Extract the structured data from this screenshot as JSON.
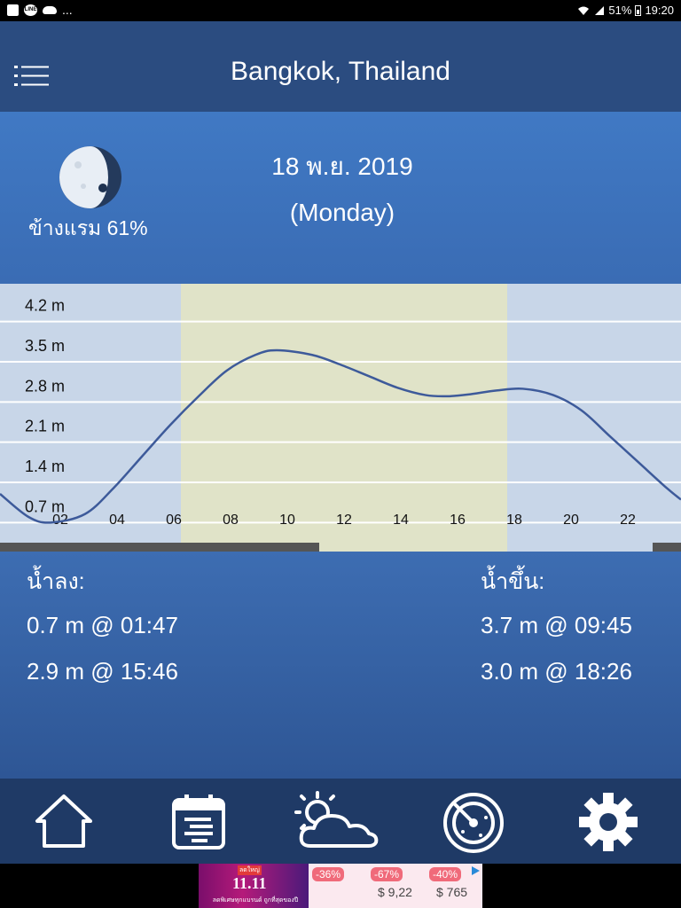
{
  "status_bar": {
    "battery": "51%",
    "time": "19:20",
    "overflow": "..."
  },
  "header": {
    "title": "Bangkok, Thailand"
  },
  "moon": {
    "phase_label": "ข้างแรม 61%",
    "illumination": 61
  },
  "date": {
    "date": "18 พ.ย. 2019",
    "day": "(Monday)"
  },
  "chart_data": {
    "type": "line",
    "y_tick_labels": [
      "4.2 m",
      "3.5 m",
      "2.8 m",
      "2.1 m",
      "1.4 m",
      "0.7 m"
    ],
    "y_ticks": [
      4.2,
      3.5,
      2.8,
      2.1,
      1.4,
      0.7
    ],
    "x_tick_labels": [
      "02",
      "04",
      "06",
      "08",
      "10",
      "12",
      "14",
      "16",
      "18",
      "20",
      "22"
    ],
    "x_ticks": [
      2,
      4,
      6,
      8,
      10,
      12,
      14,
      16,
      18,
      20,
      22
    ],
    "xlim": [
      0,
      24
    ],
    "ylim": [
      0.35,
      4.55
    ],
    "daylight_hours": [
      6.25,
      17.75
    ],
    "series": [
      {
        "x": [
          0,
          1,
          1.78,
          3,
          4,
          5,
          6,
          7,
          8,
          9,
          9.75,
          11,
          12,
          13,
          14,
          15,
          15.77,
          16.5,
          17.5,
          18.43,
          19.5,
          20.5,
          21.5,
          22.5,
          23.5,
          24
        ],
        "values": [
          1.2,
          0.8,
          0.7,
          0.85,
          1.3,
          1.85,
          2.4,
          2.9,
          3.35,
          3.62,
          3.7,
          3.62,
          3.45,
          3.25,
          3.05,
          2.92,
          2.9,
          2.93,
          3.0,
          3.03,
          2.92,
          2.65,
          2.2,
          1.75,
          1.3,
          1.1
        ]
      }
    ],
    "grid": true,
    "line_color": "#3d5a9a",
    "daylight_color": "#e0e3c8",
    "night_color": "#c8d6e8"
  },
  "tides": {
    "low_heading": "น้ำลง:",
    "high_heading": "น้ำขึ้น:",
    "low": [
      "0.7 m @ 01:47",
      "2.9 m @ 15:46"
    ],
    "high": [
      "3.7 m @ 09:45",
      "3.0 m @ 18:26"
    ]
  },
  "nav": {
    "items": [
      {
        "icon": "home-icon"
      },
      {
        "icon": "calendar-icon"
      },
      {
        "icon": "weather-icon"
      },
      {
        "icon": "radar-icon"
      },
      {
        "icon": "gear-icon"
      }
    ]
  },
  "ad": {
    "headline": "11.11",
    "tag": "ลดใหญ่",
    "subtext": "ลดพิเศษทุกแบรนด์ ถูกที่สุดของปี",
    "discounts": [
      "-36%",
      "-67%",
      "-40%"
    ],
    "prices": [
      "",
      "$ 9,22",
      "$ 765"
    ]
  },
  "colors": {
    "header": "#2b4c80",
    "panel": "#3a6cb4",
    "nav": "#1f3a66"
  }
}
